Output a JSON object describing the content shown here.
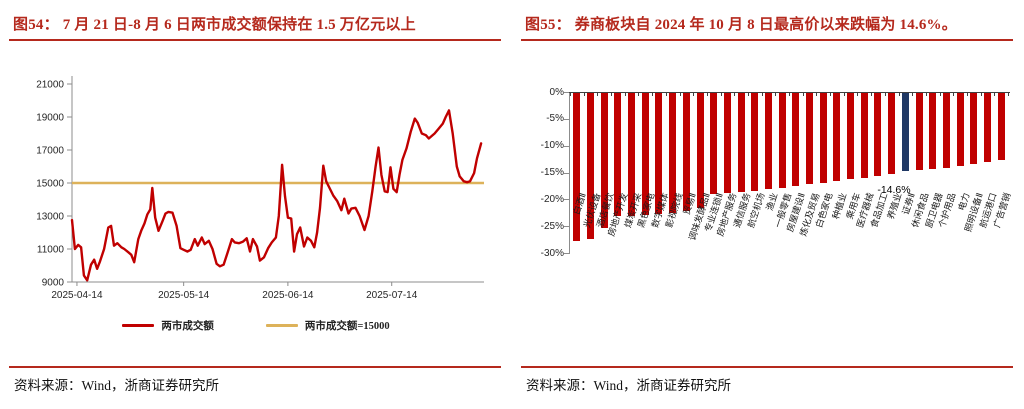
{
  "colors": {
    "title_red": "#b5291d",
    "line_red": "#c00000",
    "line_gold": "#ddb25a",
    "bar_red": "#c00000",
    "bar_blue": "#1f3864",
    "axis_gray": "#8c8c8c",
    "tick_text": "#262626"
  },
  "figure_left": {
    "title": "图54：  7 月 21 日-8 月 6 日两市成交额保持在 1.5 万亿元以上",
    "source": "资料来源：Wind，浙商证券研究所",
    "chart_data": {
      "type": "line",
      "title": "",
      "xlabel": "",
      "ylabel": "",
      "ylim": [
        9000,
        21000
      ],
      "yticks": [
        9000,
        11000,
        13000,
        15000,
        17000,
        19000,
        21000
      ],
      "xticks": [
        {
          "label": "2025-04-14",
          "f": 0.012
        },
        {
          "label": "2025-05-14",
          "f": 0.271
        },
        {
          "label": "2025-06-14",
          "f": 0.524
        },
        {
          "label": "2025-07-14",
          "f": 0.776
        }
      ],
      "grid": false,
      "legend_position": "bottom",
      "series": [
        {
          "name": "两市成交额",
          "color": "#c00000",
          "points": [
            [
              0,
              12750
            ],
            [
              0.007,
              11000
            ],
            [
              0.015,
              11250
            ],
            [
              0.022,
              11100
            ],
            [
              0.029,
              9400
            ],
            [
              0.037,
              9100
            ],
            [
              0.046,
              10050
            ],
            [
              0.054,
              10350
            ],
            [
              0.061,
              9800
            ],
            [
              0.068,
              10250
            ],
            [
              0.078,
              11000
            ],
            [
              0.088,
              12300
            ],
            [
              0.095,
              12400
            ],
            [
              0.102,
              11200
            ],
            [
              0.11,
              11350
            ],
            [
              0.12,
              11100
            ],
            [
              0.127,
              11000
            ],
            [
              0.137,
              10800
            ],
            [
              0.144,
              10650
            ],
            [
              0.151,
              10200
            ],
            [
              0.161,
              11600
            ],
            [
              0.168,
              12100
            ],
            [
              0.176,
              12550
            ],
            [
              0.183,
              13100
            ],
            [
              0.19,
              13400
            ],
            [
              0.195,
              14700
            ],
            [
              0.202,
              12900
            ],
            [
              0.21,
              12100
            ],
            [
              0.22,
              12700
            ],
            [
              0.227,
              13150
            ],
            [
              0.234,
              13250
            ],
            [
              0.244,
              13200
            ],
            [
              0.254,
              12400
            ],
            [
              0.263,
              11050
            ],
            [
              0.271,
              10950
            ],
            [
              0.28,
              10850
            ],
            [
              0.288,
              10950
            ],
            [
              0.298,
              11600
            ],
            [
              0.305,
              11200
            ],
            [
              0.315,
              11700
            ],
            [
              0.322,
              11300
            ],
            [
              0.332,
              11500
            ],
            [
              0.341,
              11000
            ],
            [
              0.351,
              10100
            ],
            [
              0.359,
              9950
            ],
            [
              0.368,
              10050
            ],
            [
              0.378,
              10800
            ],
            [
              0.388,
              11600
            ],
            [
              0.395,
              11400
            ],
            [
              0.405,
              11350
            ],
            [
              0.415,
              11450
            ],
            [
              0.424,
              11650
            ],
            [
              0.432,
              10850
            ],
            [
              0.439,
              11600
            ],
            [
              0.449,
              11150
            ],
            [
              0.456,
              10300
            ],
            [
              0.466,
              10500
            ],
            [
              0.476,
              11050
            ],
            [
              0.485,
              11400
            ],
            [
              0.495,
              11700
            ],
            [
              0.502,
              13000
            ],
            [
              0.51,
              16100
            ],
            [
              0.517,
              14200
            ],
            [
              0.524,
              12900
            ],
            [
              0.532,
              12850
            ],
            [
              0.539,
              10850
            ],
            [
              0.546,
              11900
            ],
            [
              0.554,
              12300
            ],
            [
              0.563,
              11150
            ],
            [
              0.571,
              11700
            ],
            [
              0.58,
              11500
            ],
            [
              0.588,
              11100
            ],
            [
              0.595,
              12000
            ],
            [
              0.602,
              13500
            ],
            [
              0.61,
              16050
            ],
            [
              0.617,
              15100
            ],
            [
              0.624,
              14750
            ],
            [
              0.634,
              14250
            ],
            [
              0.644,
              13900
            ],
            [
              0.654,
              13350
            ],
            [
              0.661,
              14050
            ],
            [
              0.671,
              13150
            ],
            [
              0.678,
              13450
            ],
            [
              0.688,
              13500
            ],
            [
              0.698,
              13000
            ],
            [
              0.71,
              12150
            ],
            [
              0.72,
              13000
            ],
            [
              0.729,
              14500
            ],
            [
              0.737,
              16000
            ],
            [
              0.744,
              17150
            ],
            [
              0.751,
              15500
            ],
            [
              0.759,
              14500
            ],
            [
              0.766,
              14450
            ],
            [
              0.773,
              15950
            ],
            [
              0.78,
              14650
            ],
            [
              0.788,
              14450
            ],
            [
              0.795,
              15500
            ],
            [
              0.802,
              16400
            ],
            [
              0.812,
              17100
            ],
            [
              0.822,
              18100
            ],
            [
              0.832,
              18900
            ],
            [
              0.839,
              18650
            ],
            [
              0.849,
              18000
            ],
            [
              0.859,
              17900
            ],
            [
              0.866,
              17700
            ],
            [
              0.873,
              17850
            ],
            [
              0.88,
              18000
            ],
            [
              0.89,
              18300
            ],
            [
              0.9,
              18600
            ],
            [
              0.907,
              19000
            ],
            [
              0.915,
              19400
            ],
            [
              0.924,
              18000
            ],
            [
              0.934,
              16000
            ],
            [
              0.941,
              15400
            ],
            [
              0.951,
              15100
            ],
            [
              0.959,
              15050
            ],
            [
              0.966,
              15100
            ],
            [
              0.976,
              15600
            ],
            [
              0.983,
              16500
            ],
            [
              0.993,
              17400
            ]
          ]
        },
        {
          "name": "两市成交额=15000",
          "color": "#ddb25a",
          "value": 15000
        }
      ]
    }
  },
  "figure_right": {
    "title": "图55：  券商板块自 2024 年 10 月 8 日最高价以来跌幅为 14.6%。",
    "source": "资料来源：Wind，浙商证券研究所",
    "chart_data": {
      "type": "bar",
      "title": "",
      "ylabel": "",
      "ylim": [
        -30,
        0
      ],
      "ytick_labels": [
        "0%",
        "-5%",
        "-10%",
        "-15%",
        "-20%",
        "-25%",
        "-30%"
      ],
      "grid": false,
      "bar_color": "#c00000",
      "categories": [
        "白酒Ⅱ",
        "光伏设备",
        "酒店餐饮",
        "房地产开发",
        "煤炭开采",
        "黑色家电",
        "数字媒体",
        "影视院线",
        "贸易Ⅱ",
        "调味发酵品Ⅱ",
        "专业连锁Ⅱ",
        "房地产服务",
        "通信服务",
        "航空机场",
        "渔业",
        "一般零售",
        "房屋建设Ⅱ",
        "炼化及贸易",
        "白色家电",
        "种植业",
        "乘用车",
        "医疗器械",
        "食品加工",
        "养殖业",
        "证券Ⅱ",
        "休闲食品",
        "厨卫电器",
        "个护用品",
        "电力",
        "照明设备Ⅱ",
        "航运港口",
        "广告营销"
      ],
      "values": [
        -27.5,
        -27.2,
        -25.1,
        -23.0,
        -22.9,
        -22.8,
        -22.6,
        -22.3,
        -21.9,
        -21.4,
        -18.9,
        -18.7,
        -18.5,
        -18.2,
        -17.9,
        -17.6,
        -17.3,
        -17.0,
        -16.7,
        -16.4,
        -16.1,
        -15.8,
        -15.4,
        -15.0,
        -14.6,
        -14.4,
        -14.2,
        -13.9,
        -13.6,
        -13.3,
        -12.9,
        -12.5
      ],
      "highlight": {
        "index": 24,
        "category": "证券Ⅱ",
        "value": -14.6,
        "color": "#1f3864"
      },
      "annotation": "-14.6%"
    }
  }
}
